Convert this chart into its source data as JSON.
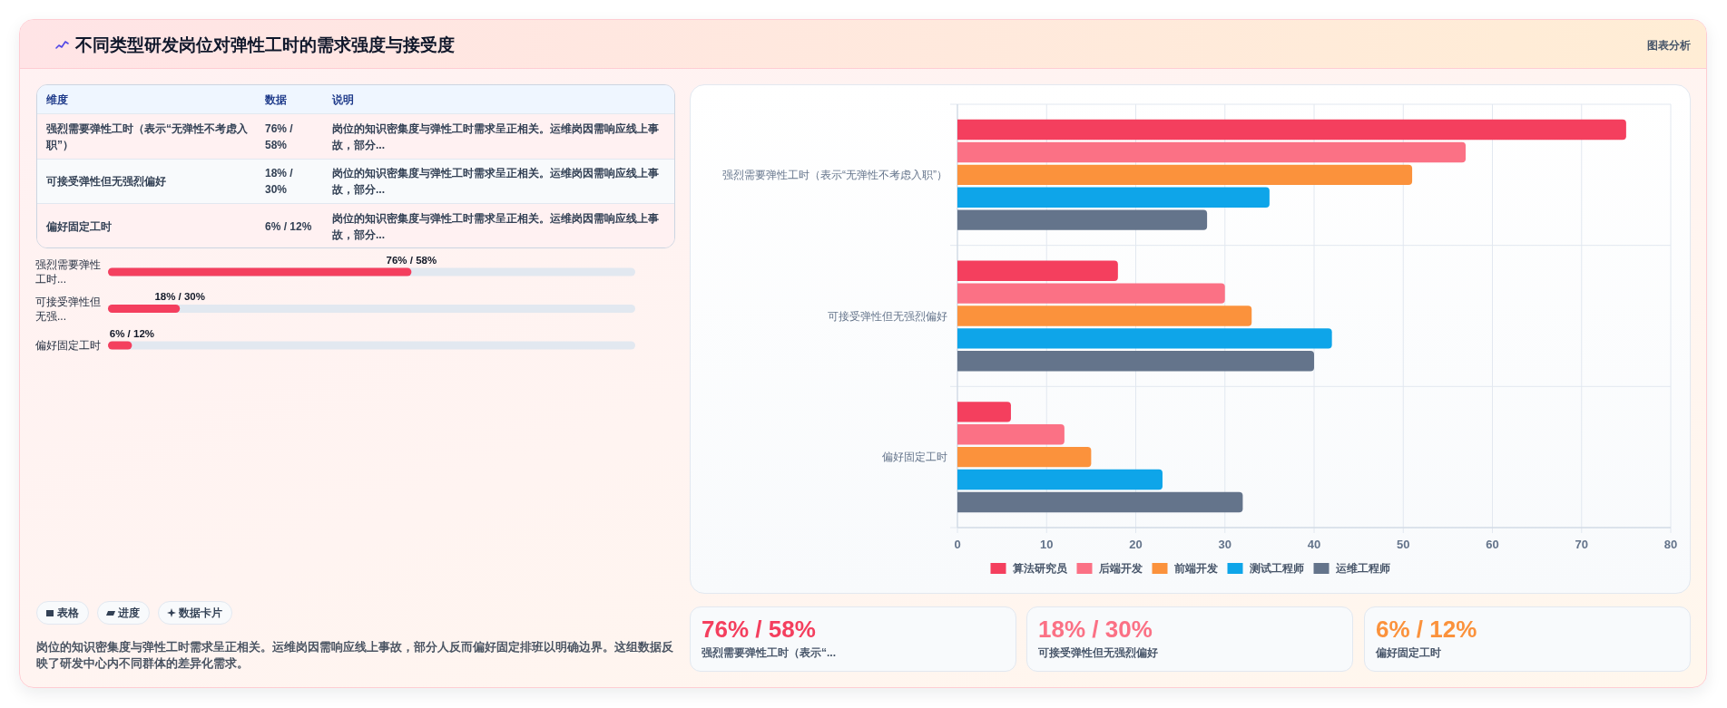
{
  "chart_data": [
    {
      "type": "other",
      "title": "不同类型研发岗位对弹性工时的需求强度与接受度",
      "annotations": [
        "图表分析"
      ]
    },
    {
      "type": "other",
      "annotations": [
        "维度",
        "数据",
        "说明",
        "强烈需要弹性工时（表示“无弹性不考虑入职”）",
        "76% / 58%",
        "岗位的知识密集度与弹性工时需求呈正相关。运维岗因需响应线上事故，部分...",
        "可接受弹性但无强烈偏好",
        "18% / 30%",
        "岗位的知识密集度与弹性工时需求呈正相关。运维岗因需响应线上事故，部分...",
        "偏好固定工时",
        "6% / 12%",
        "岗位的知识密集度与弹性工时需求呈正相关。运维岗因需响应线上事故，部分..."
      ]
    },
    {
      "type": "bar",
      "orientation": "horizontal",
      "categories": [
        "强烈需要弹性工时...",
        "可接受弹性但无强...",
        "偏好固定工时"
      ],
      "values": [
        76,
        18,
        6
      ],
      "value_labels": [
        "76% / 58%",
        "18% / 30%",
        "6% / 12%"
      ],
      "color": "#f43f5e"
    },
    {
      "type": "other",
      "annotations": [
        "表格",
        "进度",
        "数据卡片",
        "岗位的知识密集度与弹性工时需求呈正相关。运维岗因需响应线上事故，部分人反而偏好固定排班以明确边界。这组数据反映了研发中心内不同群体的差异化需求。"
      ]
    },
    {
      "type": "bar",
      "orientation": "horizontal",
      "categories": [
        "强烈需要弹性工时（表示“无弹性不考虑入职”）",
        "可接受弹性但无强烈偏好",
        "偏好固定工时"
      ],
      "series": [
        {
          "name": "算法研究员",
          "color": "#f43f5e",
          "values": [
            75,
            18,
            6
          ]
        },
        {
          "name": "后端开发",
          "color": "#fb7185",
          "values": [
            57,
            30,
            12
          ]
        },
        {
          "name": "前端开发",
          "color": "#fb923c",
          "values": [
            51,
            33,
            15
          ]
        },
        {
          "name": "测试工程师",
          "color": "#0ea5e9",
          "values": [
            35,
            42,
            23
          ]
        },
        {
          "name": "运维工程师",
          "color": "#64748b",
          "values": [
            28,
            40,
            32
          ]
        }
      ],
      "xlim": [
        0,
        80
      ],
      "xticks": [
        0,
        10,
        20,
        30,
        40,
        50,
        60,
        70,
        80
      ],
      "grid": true,
      "legend": "bottom"
    },
    {
      "type": "other",
      "title": "76% / 58%",
      "subtitle": "强烈需要弹性工时（表示“..."
    },
    {
      "type": "other",
      "title": "18% / 30%",
      "subtitle": "可接受弹性但无强烈偏好"
    },
    {
      "type": "other",
      "title": "6% / 12%",
      "subtitle": "偏好固定工时"
    }
  ]
}
